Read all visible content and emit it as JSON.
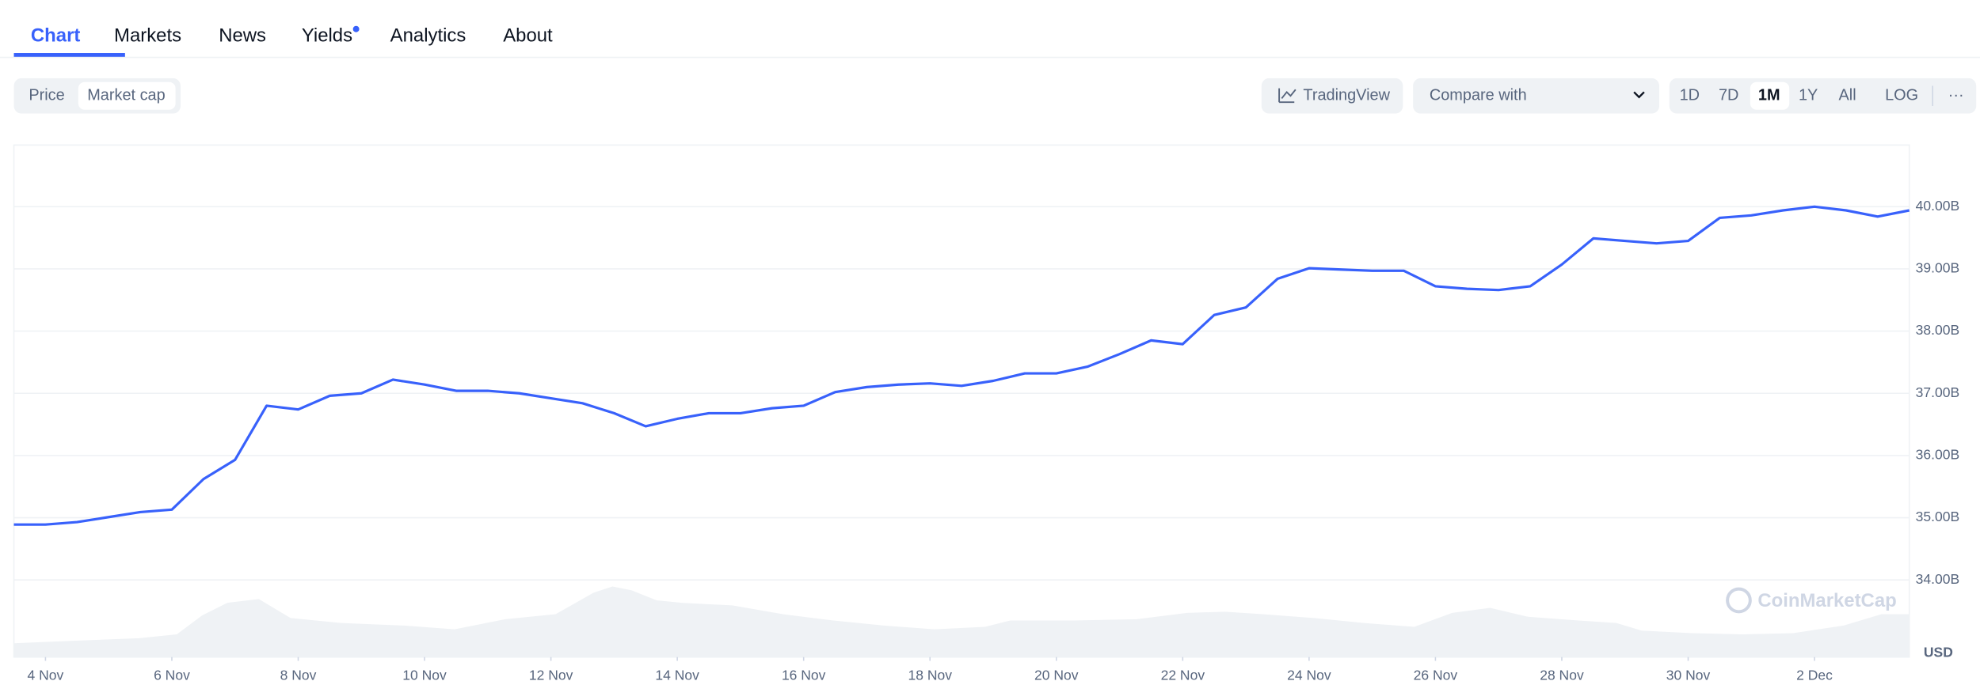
{
  "tabs": [
    "Chart",
    "Markets",
    "News",
    "Yields",
    "Analytics",
    "About"
  ],
  "toggle": [
    "Price",
    "Market cap"
  ],
  "buttons": {
    "tradingview": "TradingView",
    "compare": "Compare with",
    "ranges": [
      "1D",
      "7D",
      "1M",
      "1Y",
      "All"
    ],
    "log": "LOG",
    "more": "···"
  },
  "chart_data": {
    "type": "line",
    "color": "#3861fb",
    "grid": true,
    "x": [
      3.5,
      4,
      4.5,
      5,
      5.5,
      6,
      6.5,
      7,
      7.5,
      8,
      8.5,
      9,
      9.5,
      10,
      10.5,
      11,
      11.5,
      12,
      12.5,
      13,
      13.5,
      14,
      14.5,
      15,
      15.5,
      16,
      16.5,
      17,
      17.5,
      18,
      18.5,
      19,
      19.5,
      20,
      20.5,
      21,
      21.5,
      22,
      22.5,
      23,
      23.5,
      24,
      24.5,
      25,
      25.5,
      26,
      26.5,
      27,
      27.5,
      28,
      28.5,
      29,
      29.5,
      30,
      30.5,
      31,
      31.5,
      32,
      32.5,
      33,
      33.5
    ],
    "series": [
      {
        "name": "Market cap",
        "color": "#3861fb",
        "values": [
          34.89,
          34.89,
          34.93,
          35.01,
          35.09,
          35.13,
          35.62,
          35.93,
          36.8,
          36.74,
          36.96,
          37.0,
          37.22,
          37.14,
          37.04,
          37.04,
          37.0,
          36.92,
          36.84,
          36.68,
          36.47,
          36.59,
          36.68,
          36.68,
          36.76,
          36.8,
          37.02,
          37.1,
          37.14,
          37.16,
          37.12,
          37.2,
          37.32,
          37.32,
          37.43,
          37.63,
          37.85,
          37.79,
          38.26,
          38.38,
          38.84,
          39.01,
          38.99,
          38.97,
          38.97,
          38.72,
          38.68,
          38.66,
          38.72,
          39.07,
          39.49,
          39.45,
          39.41,
          39.45,
          39.82,
          39.86,
          39.94,
          40.0,
          39.94,
          39.84,
          39.94
        ]
      }
    ],
    "xlim": [
      3.5,
      33.5
    ],
    "xticks": [
      {
        "value": 4,
        "label": "4 Nov"
      },
      {
        "value": 6,
        "label": "6 Nov"
      },
      {
        "value": 8,
        "label": "8 Nov"
      },
      {
        "value": 10,
        "label": "10 Nov"
      },
      {
        "value": 12,
        "label": "12 Nov"
      },
      {
        "value": 14,
        "label": "14 Nov"
      },
      {
        "value": 16,
        "label": "16 Nov"
      },
      {
        "value": 18,
        "label": "18 Nov"
      },
      {
        "value": 20,
        "label": "20 Nov"
      },
      {
        "value": 22,
        "label": "22 Nov"
      },
      {
        "value": 24,
        "label": "24 Nov"
      },
      {
        "value": 26,
        "label": "26 Nov"
      },
      {
        "value": 28,
        "label": "28 Nov"
      },
      {
        "value": 30,
        "label": "30 Nov"
      },
      {
        "value": 32,
        "label": "2 Dec"
      }
    ],
    "ylim": [
      32.76,
      40.99
    ],
    "yticks": [
      {
        "value": 34,
        "label": "34.00B"
      },
      {
        "value": 35,
        "label": "35.00B"
      },
      {
        "value": 36,
        "label": "36.00B"
      },
      {
        "value": 37,
        "label": "37.00B"
      },
      {
        "value": 38,
        "label": "38.00B"
      },
      {
        "value": 39,
        "label": "39.00B"
      },
      {
        "value": 40,
        "label": "40.00B"
      }
    ],
    "currency_label": "USD",
    "watermark": "CoinMarketCap"
  }
}
